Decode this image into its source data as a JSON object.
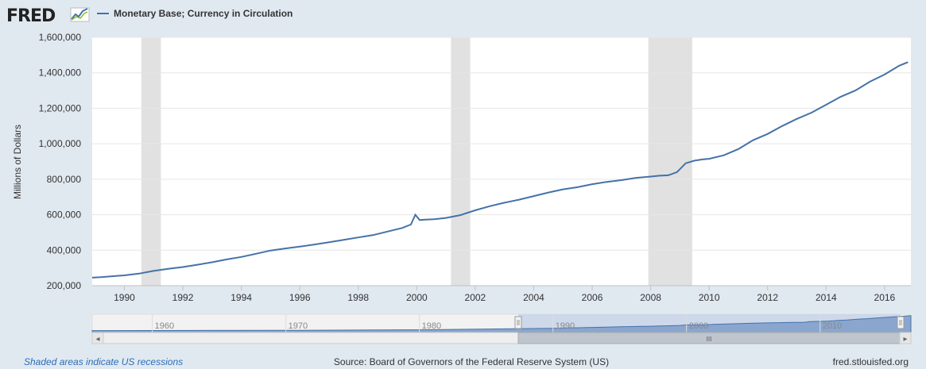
{
  "logo": {
    "text": "FRED",
    "icon": "line-graph-icon"
  },
  "series_title": "Monetary Base; Currency in Circulation",
  "footer": {
    "recession_note": "Shaded areas indicate US recessions",
    "source": "Source: Board of Governors of the Federal Reserve System (US)",
    "site": "fred.stlouisfed.org"
  },
  "navigator": {
    "labels": [
      "1960",
      "1970",
      "1980",
      "1990",
      "2000",
      "2010"
    ],
    "scroll_left_glyph": "◂",
    "scroll_right_glyph": "▸",
    "grip_glyph": "III"
  },
  "colors": {
    "line": "#4572a7",
    "recession": "#e1e1e1",
    "grid": "#e6e6e6",
    "background": "#e1e9f0",
    "plot": "#ffffff",
    "navigator_fill": "#c3d1e7",
    "scrollbar_thumb": "#bfc5cc"
  },
  "chart_data": {
    "type": "line",
    "ylabel": "Millions of Dollars",
    "xlim": [
      1988.9,
      2016.9
    ],
    "ylim": [
      200000,
      1600000
    ],
    "y_ticks": [
      200000,
      400000,
      600000,
      800000,
      1000000,
      1200000,
      1400000,
      1600000
    ],
    "y_tick_labels": [
      "200,000",
      "400,000",
      "600,000",
      "800,000",
      "1,000,000",
      "1,200,000",
      "1,400,000",
      "1,600,000"
    ],
    "x_ticks": [
      1990,
      1992,
      1994,
      1996,
      1998,
      2000,
      2002,
      2004,
      2006,
      2008,
      2010,
      2012,
      2014,
      2016
    ],
    "recessions": [
      [
        1990.58,
        1991.25
      ],
      [
        2001.17,
        2001.83
      ],
      [
        2007.92,
        2009.42
      ]
    ],
    "series": [
      {
        "x": [
          1988.9,
          1989.2,
          1989.5,
          1989.8,
          1990.0,
          1990.5,
          1991.0,
          1991.5,
          1992.0,
          1992.5,
          1993.0,
          1993.5,
          1994.0,
          1994.5,
          1995.0,
          1995.5,
          1996.0,
          1996.5,
          1997.0,
          1997.5,
          1998.0,
          1998.5,
          1999.0,
          1999.5,
          1999.8,
          1999.95,
          2000.1,
          2000.3,
          2000.6,
          2001.0,
          2001.5,
          2002.0,
          2002.5,
          2003.0,
          2003.5,
          2004.0,
          2004.5,
          2005.0,
          2005.5,
          2006.0,
          2006.5,
          2007.0,
          2007.5,
          2008.0,
          2008.3,
          2008.6,
          2008.9,
          2009.2,
          2009.5,
          2009.8,
          2010.0,
          2010.5,
          2011.0,
          2011.5,
          2012.0,
          2012.5,
          2013.0,
          2013.5,
          2014.0,
          2014.5,
          2015.0,
          2015.5,
          2016.0,
          2016.5,
          2016.8
        ],
        "y": [
          245000,
          248000,
          252000,
          256000,
          258000,
          268000,
          283000,
          295000,
          305000,
          318000,
          332000,
          348000,
          362000,
          380000,
          398000,
          410000,
          420000,
          432000,
          445000,
          458000,
          472000,
          485000,
          505000,
          525000,
          545000,
          600000,
          570000,
          572000,
          575000,
          582000,
          598000,
          625000,
          648000,
          668000,
          685000,
          705000,
          725000,
          743000,
          755000,
          772000,
          785000,
          795000,
          808000,
          815000,
          820000,
          822000,
          840000,
          890000,
          905000,
          912000,
          915000,
          935000,
          970000,
          1020000,
          1055000,
          1100000,
          1140000,
          1175000,
          1220000,
          1265000,
          1300000,
          1350000,
          1390000,
          1440000,
          1460000
        ]
      }
    ]
  }
}
